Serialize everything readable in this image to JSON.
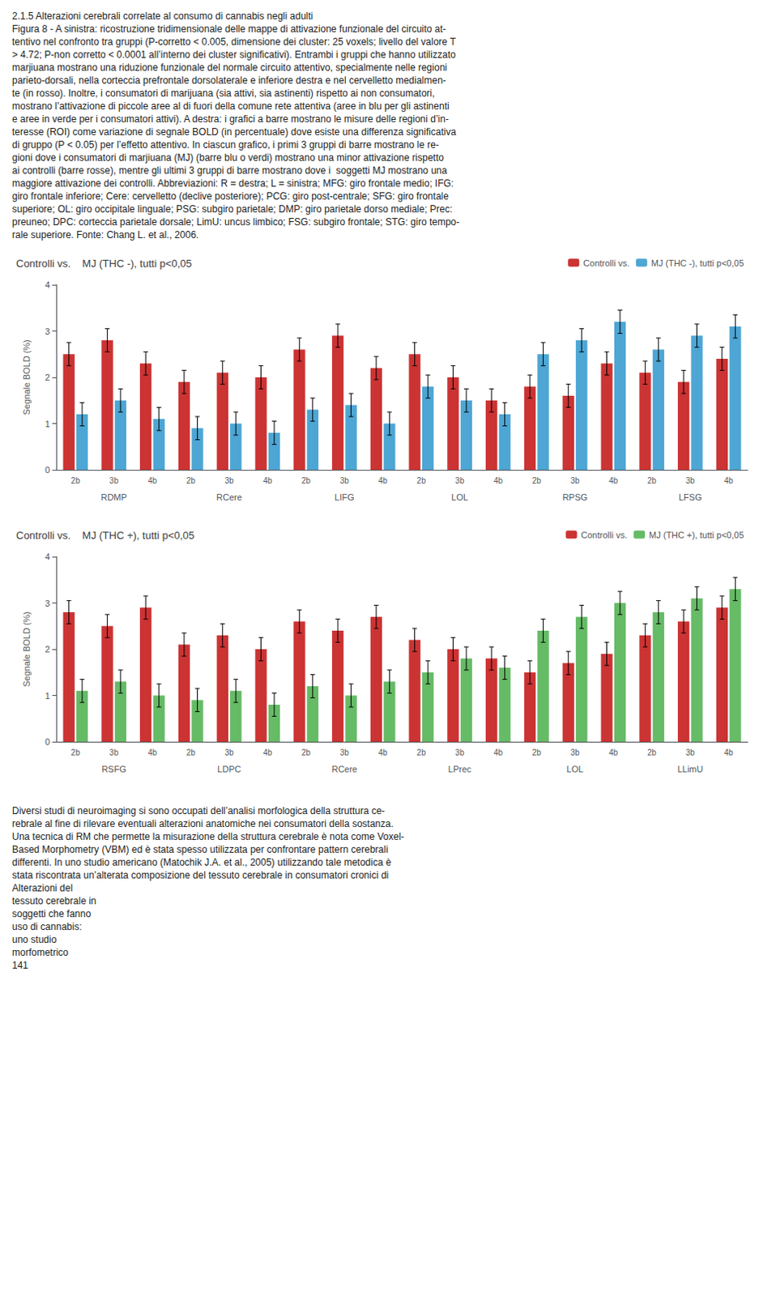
{
  "chart_data": [
    {
      "type": "bar",
      "title": "Controlli vs.    MJ (THC -), tutti p<0,05",
      "ylabel": "Segnale BOLD (%)",
      "annotations": [
        "2.1.5 Alterazioni cerebrali correlate al consumo di cannabis negli adulti",
        "Figura 8 - A sinistra: ricostruzione tridimensionale delle mappe di attivazione funzionale del circuito at-",
        "tentivo nel confronto tra gruppi (P-corretto < 0.005, dimensione dei cluster: 25 voxels; livello del valore T",
        "> 4.72; P-non corretto < 0.0001 all’interno dei cluster significativi). Entrambi i gruppi che hanno utilizzato",
        "marjiuana mostrano una riduzione funzionale del normale circuito attentivo, specialmente nelle regioni",
        "parieto-dorsali, nella corteccia prefrontale dorsolaterale e inferiore destra e nel cervelletto medialmen-",
        "te (in rosso). Inoltre, i consumatori di marijuana (sia attivi, sia astinenti) rispetto ai non consumatori,",
        "mostrano l’attivazione di piccole aree al di fuori della comune rete attentiva (aree in blu per gli astinenti",
        "e aree in verde per i consumatori attivi). A destra: i grafici a barre mostrano le misure delle regioni d’in-",
        "teresse (ROI) come variazione di segnale BOLD (in percentuale) dove esiste una differenza significativa",
        "di gruppo (P < 0.05) per l’effetto attentivo. In ciascun grafico, i primi 3 gruppi di barre mostrano le re-",
        "gioni dove i consumatori di marjiuana (MJ) (barre blu o verdi) mostrano una minor attivazione rispetto",
        "ai controlli (barre rosse), mentre gli ultimi 3 gruppi di barre mostrano dove i  soggetti MJ mostrano una",
        "maggiore attivazione dei controlli. Abbreviazioni: R = destra; L = sinistra; MFG: giro frontale medio; IFG:",
        "giro frontale inferiore; Cere: cervelletto (declive posteriore); PCG: giro post-centrale; SFG: giro frontale",
        "superiore; OL: giro occipitale linguale; PSG: subgiro parietale; DMP: giro parietale dorso mediale; Prec:",
        "preuneo; DPC: corteccia parietale dorsale; LimU: uncus limbico; FSG: subgiro frontale; STG: giro tempo-",
        "rale superiore. Fonte: Chang L. et al., 2006."
      ],
      "categories": [
        "2b",
        "3b",
        "4b",
        "2b",
        "3b",
        "4b",
        "2b",
        "3b",
        "4b",
        "2b",
        "3b",
        "4b",
        "2b",
        "3b",
        "4b",
        "2b",
        "3b",
        "4b"
      ],
      "groups": [
        "RDMP",
        "RCere",
        "LIFG",
        "LOL",
        "RPSG",
        "LFSG"
      ],
      "series": [
        {
          "name": "Controlli vs.",
          "color": "#cc3333",
          "values": [
            2.5,
            2.8,
            2.3,
            1.9,
            2.1,
            2.0,
            2.6,
            2.9,
            2.2,
            2.5,
            2.0,
            1.5,
            1.8,
            1.6,
            2.3,
            2.1,
            1.9,
            2.4
          ],
          "errors": [
            0.25,
            0.25,
            0.25,
            0.25,
            0.25,
            0.25,
            0.25,
            0.25,
            0.25,
            0.25,
            0.25,
            0.25,
            0.25,
            0.25,
            0.25,
            0.25,
            0.25,
            0.25
          ]
        },
        {
          "name": "MJ (THC -), tutti p<0,05",
          "color": "#4da6d4",
          "values": [
            1.2,
            1.5,
            1.1,
            0.9,
            1.0,
            0.8,
            1.3,
            1.4,
            1.0,
            1.8,
            1.5,
            1.2,
            2.5,
            2.8,
            3.2,
            2.6,
            2.9,
            3.1
          ],
          "errors": [
            0.25,
            0.25,
            0.25,
            0.25,
            0.25,
            0.25,
            0.25,
            0.25,
            0.25,
            0.25,
            0.25,
            0.25,
            0.25,
            0.25,
            0.25,
            0.25,
            0.25,
            0.25
          ]
        }
      ],
      "ylim": [
        0,
        4
      ],
      "yticks": [
        0,
        1,
        2,
        3,
        4
      ],
      "grid": false,
      "legend": "upper right"
    },
    {
      "type": "bar",
      "title": "Controlli vs.    MJ (THC +), tutti p<0,05",
      "ylabel": "Segnale BOLD (%)",
      "annotations": [
        "Diversi studi di neuroimaging si sono occupati dell’analisi morfologica della struttura ce-",
        "rebrale al fine di rilevare eventuali alterazioni anatomiche nei consumatori della sostanza.",
        "Una tecnica di RM che permette la misurazione della struttura cerebrale è nota come Voxel-",
        "Based Morphometry (VBM) ed è stata spesso utilizzata per confrontare pattern cerebrali",
        "differenti. In uno studio americano (Matochik J.A. et al., 2005) utilizzando tale metodica è",
        "stata riscontrata un’alterata composizione del tessuto cerebrale in consumatori cronici di",
        "Alterazioni del",
        "tessuto cerebrale in",
        "soggetti che fanno",
        "uso di cannabis:",
        "uno studio",
        "morfometrico",
        "141"
      ],
      "categories": [
        "2b",
        "3b",
        "4b",
        "2b",
        "3b",
        "4b",
        "2b",
        "3b",
        "4b",
        "2b",
        "3b",
        "4b",
        "2b",
        "3b",
        "4b",
        "2b",
        "3b",
        "4b"
      ],
      "groups": [
        "RSFG",
        "LDPC",
        "RCere",
        "LPrec",
        "LOL",
        "LLimU"
      ],
      "series": [
        {
          "name": "Controlli vs.",
          "color": "#cc3333",
          "values": [
            2.8,
            2.5,
            2.9,
            2.1,
            2.3,
            2.0,
            2.6,
            2.4,
            2.7,
            2.2,
            2.0,
            1.8,
            1.5,
            1.7,
            1.9,
            2.3,
            2.6,
            2.9
          ],
          "errors": [
            0.25,
            0.25,
            0.25,
            0.25,
            0.25,
            0.25,
            0.25,
            0.25,
            0.25,
            0.25,
            0.25,
            0.25,
            0.25,
            0.25,
            0.25,
            0.25,
            0.25,
            0.25
          ]
        },
        {
          "name": "MJ (THC +), tutti p<0,05",
          "color": "#66bb66",
          "values": [
            1.1,
            1.3,
            1.0,
            0.9,
            1.1,
            0.8,
            1.2,
            1.0,
            1.3,
            1.5,
            1.8,
            1.6,
            2.4,
            2.7,
            3.0,
            2.8,
            3.1,
            3.3
          ],
          "errors": [
            0.25,
            0.25,
            0.25,
            0.25,
            0.25,
            0.25,
            0.25,
            0.25,
            0.25,
            0.25,
            0.25,
            0.25,
            0.25,
            0.25,
            0.25,
            0.25,
            0.25,
            0.25
          ]
        }
      ],
      "ylim": [
        0,
        4
      ],
      "yticks": [
        0,
        1,
        2,
        3,
        4
      ],
      "grid": false,
      "legend": "upper right"
    }
  ]
}
